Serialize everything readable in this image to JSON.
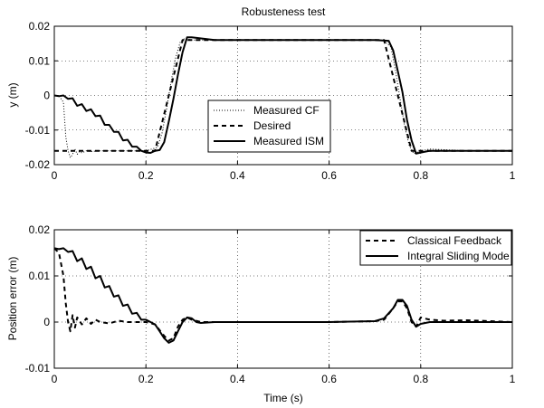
{
  "chart_data": [
    {
      "type": "line",
      "title": "Robusteness test",
      "xlabel": "",
      "ylabel": "y (m)",
      "xlim": [
        0,
        1
      ],
      "ylim": [
        -0.02,
        0.02
      ],
      "xticks": [
        "0",
        "0.2",
        "0.4",
        "0.6",
        "0.8",
        "1"
      ],
      "yticks": [
        "-0.02",
        "-0.01",
        "0",
        "0.01",
        "0.02"
      ],
      "grid": true,
      "legend_position": "center",
      "series": [
        {
          "name": "Measured CF",
          "style": "dotted",
          "x": [
            0,
            0.01,
            0.02,
            0.025,
            0.03,
            0.035,
            0.04,
            0.045,
            0.05,
            0.055,
            0.06,
            0.07,
            0.08,
            0.1,
            0.15,
            0.2,
            0.225,
            0.235,
            0.245,
            0.255,
            0.265,
            0.275,
            0.285,
            0.3,
            0.4,
            0.5,
            0.6,
            0.7,
            0.72,
            0.735,
            0.745,
            0.755,
            0.765,
            0.775,
            0.785,
            0.8,
            0.82,
            0.9,
            1.0
          ],
          "y": [
            0,
            0,
            -0.002,
            -0.012,
            -0.016,
            -0.018,
            -0.017,
            -0.0155,
            -0.017,
            -0.0162,
            -0.0166,
            -0.016,
            -0.0162,
            -0.016,
            -0.016,
            -0.016,
            -0.015,
            -0.011,
            -0.004,
            0.004,
            0.011,
            0.0155,
            0.0165,
            0.016,
            0.016,
            0.016,
            0.016,
            0.016,
            0.0158,
            0.014,
            0.007,
            -0.001,
            -0.009,
            -0.0145,
            -0.0168,
            -0.016,
            -0.0155,
            -0.016,
            -0.016
          ]
        },
        {
          "name": "Desired",
          "style": "dashed",
          "x": [
            0,
            0.22,
            0.28,
            0.72,
            0.78,
            1.0
          ],
          "y": [
            -0.016,
            -0.016,
            0.016,
            0.016,
            -0.016,
            -0.016
          ]
        },
        {
          "name": "Measured ISM",
          "style": "solid",
          "x": [
            0,
            0.01,
            0.02,
            0.03,
            0.04,
            0.05,
            0.06,
            0.07,
            0.08,
            0.09,
            0.1,
            0.11,
            0.12,
            0.13,
            0.14,
            0.15,
            0.16,
            0.17,
            0.18,
            0.19,
            0.2,
            0.21,
            0.22,
            0.23,
            0.24,
            0.25,
            0.26,
            0.27,
            0.28,
            0.29,
            0.3,
            0.35,
            0.4,
            0.45,
            0.5,
            0.55,
            0.6,
            0.65,
            0.7,
            0.73,
            0.74,
            0.75,
            0.76,
            0.77,
            0.78,
            0.79,
            0.8,
            0.82,
            0.85,
            0.9,
            0.95,
            1.0
          ],
          "y": [
            0,
            -0.0002,
            0,
            -0.001,
            -0.0008,
            -0.003,
            -0.0025,
            -0.0045,
            -0.004,
            -0.006,
            -0.0058,
            -0.0085,
            -0.0085,
            -0.0105,
            -0.0105,
            -0.013,
            -0.0128,
            -0.0148,
            -0.0148,
            -0.016,
            -0.0165,
            -0.0166,
            -0.016,
            -0.0158,
            -0.0135,
            -0.0075,
            -0.001,
            0.006,
            0.0125,
            0.0168,
            0.0168,
            0.016,
            0.016,
            0.016,
            0.016,
            0.016,
            0.016,
            0.016,
            0.016,
            0.0158,
            0.013,
            0.007,
            0.001,
            -0.007,
            -0.013,
            -0.0168,
            -0.0165,
            -0.016,
            -0.016,
            -0.016,
            -0.016,
            -0.016
          ]
        }
      ]
    },
    {
      "type": "line",
      "title": "",
      "xlabel": "Time (s)",
      "ylabel": "Position error (m)",
      "xlim": [
        0,
        1
      ],
      "ylim": [
        -0.01,
        0.02
      ],
      "xticks": [
        "0",
        "0.2",
        "0.4",
        "0.6",
        "0.8",
        "1"
      ],
      "yticks": [
        "-0.01",
        "0",
        "0.01",
        "0.02"
      ],
      "grid": true,
      "legend_position": "top-right",
      "series": [
        {
          "name": "Classical Feedback",
          "style": "dashed",
          "x": [
            0,
            0.01,
            0.02,
            0.025,
            0.03,
            0.035,
            0.04,
            0.045,
            0.05,
            0.06,
            0.07,
            0.08,
            0.09,
            0.1,
            0.12,
            0.14,
            0.16,
            0.18,
            0.2,
            0.22,
            0.24,
            0.25,
            0.26,
            0.27,
            0.28,
            0.29,
            0.3,
            0.32,
            0.4,
            0.5,
            0.6,
            0.7,
            0.72,
            0.74,
            0.75,
            0.76,
            0.77,
            0.78,
            0.79,
            0.8,
            0.82,
            0.85,
            0.9,
            0.95,
            1.0
          ],
          "y": [
            0.016,
            0.015,
            0.01,
            0.004,
            0,
            -0.002,
            0.0015,
            -0.0012,
            0.001,
            -0.0005,
            0.0008,
            -0.0004,
            0.0005,
            0,
            -0.0003,
            0.0003,
            0,
            0,
            0,
            -0.0005,
            -0.003,
            -0.004,
            -0.0035,
            -0.001,
            0.0005,
            0.001,
            0.0005,
            0,
            0,
            0,
            0,
            0.0002,
            0.0005,
            0.003,
            0.0045,
            0.0045,
            0.003,
            0,
            -0.001,
            0.001,
            0.0005,
            0.0003,
            0.0004,
            0.0002,
            0
          ]
        },
        {
          "name": "Integral Sliding Mode",
          "style": "solid",
          "x": [
            0,
            0.01,
            0.02,
            0.03,
            0.04,
            0.05,
            0.06,
            0.07,
            0.08,
            0.09,
            0.1,
            0.11,
            0.12,
            0.13,
            0.14,
            0.15,
            0.16,
            0.17,
            0.18,
            0.19,
            0.2,
            0.21,
            0.22,
            0.23,
            0.24,
            0.25,
            0.26,
            0.27,
            0.28,
            0.29,
            0.3,
            0.31,
            0.32,
            0.35,
            0.4,
            0.5,
            0.6,
            0.7,
            0.72,
            0.74,
            0.75,
            0.76,
            0.77,
            0.78,
            0.79,
            0.8,
            0.82,
            0.85,
            0.9,
            0.95,
            1.0
          ],
          "y": [
            0.016,
            0.0158,
            0.016,
            0.0152,
            0.0154,
            0.0132,
            0.0138,
            0.0115,
            0.012,
            0.0095,
            0.01,
            0.0075,
            0.0078,
            0.0055,
            0.0058,
            0.0035,
            0.0038,
            0.0018,
            0.002,
            0.0005,
            0.0005,
            0,
            -0.0005,
            -0.002,
            -0.0035,
            -0.0045,
            -0.004,
            -0.002,
            0,
            0.001,
            0.0008,
            0,
            -0.0002,
            0,
            0,
            0,
            0,
            0.0002,
            0.0008,
            0.003,
            0.0048,
            0.0048,
            0.0035,
            0.0005,
            -0.001,
            -0.0004,
            0,
            0,
            0,
            0,
            0
          ]
        }
      ]
    }
  ]
}
